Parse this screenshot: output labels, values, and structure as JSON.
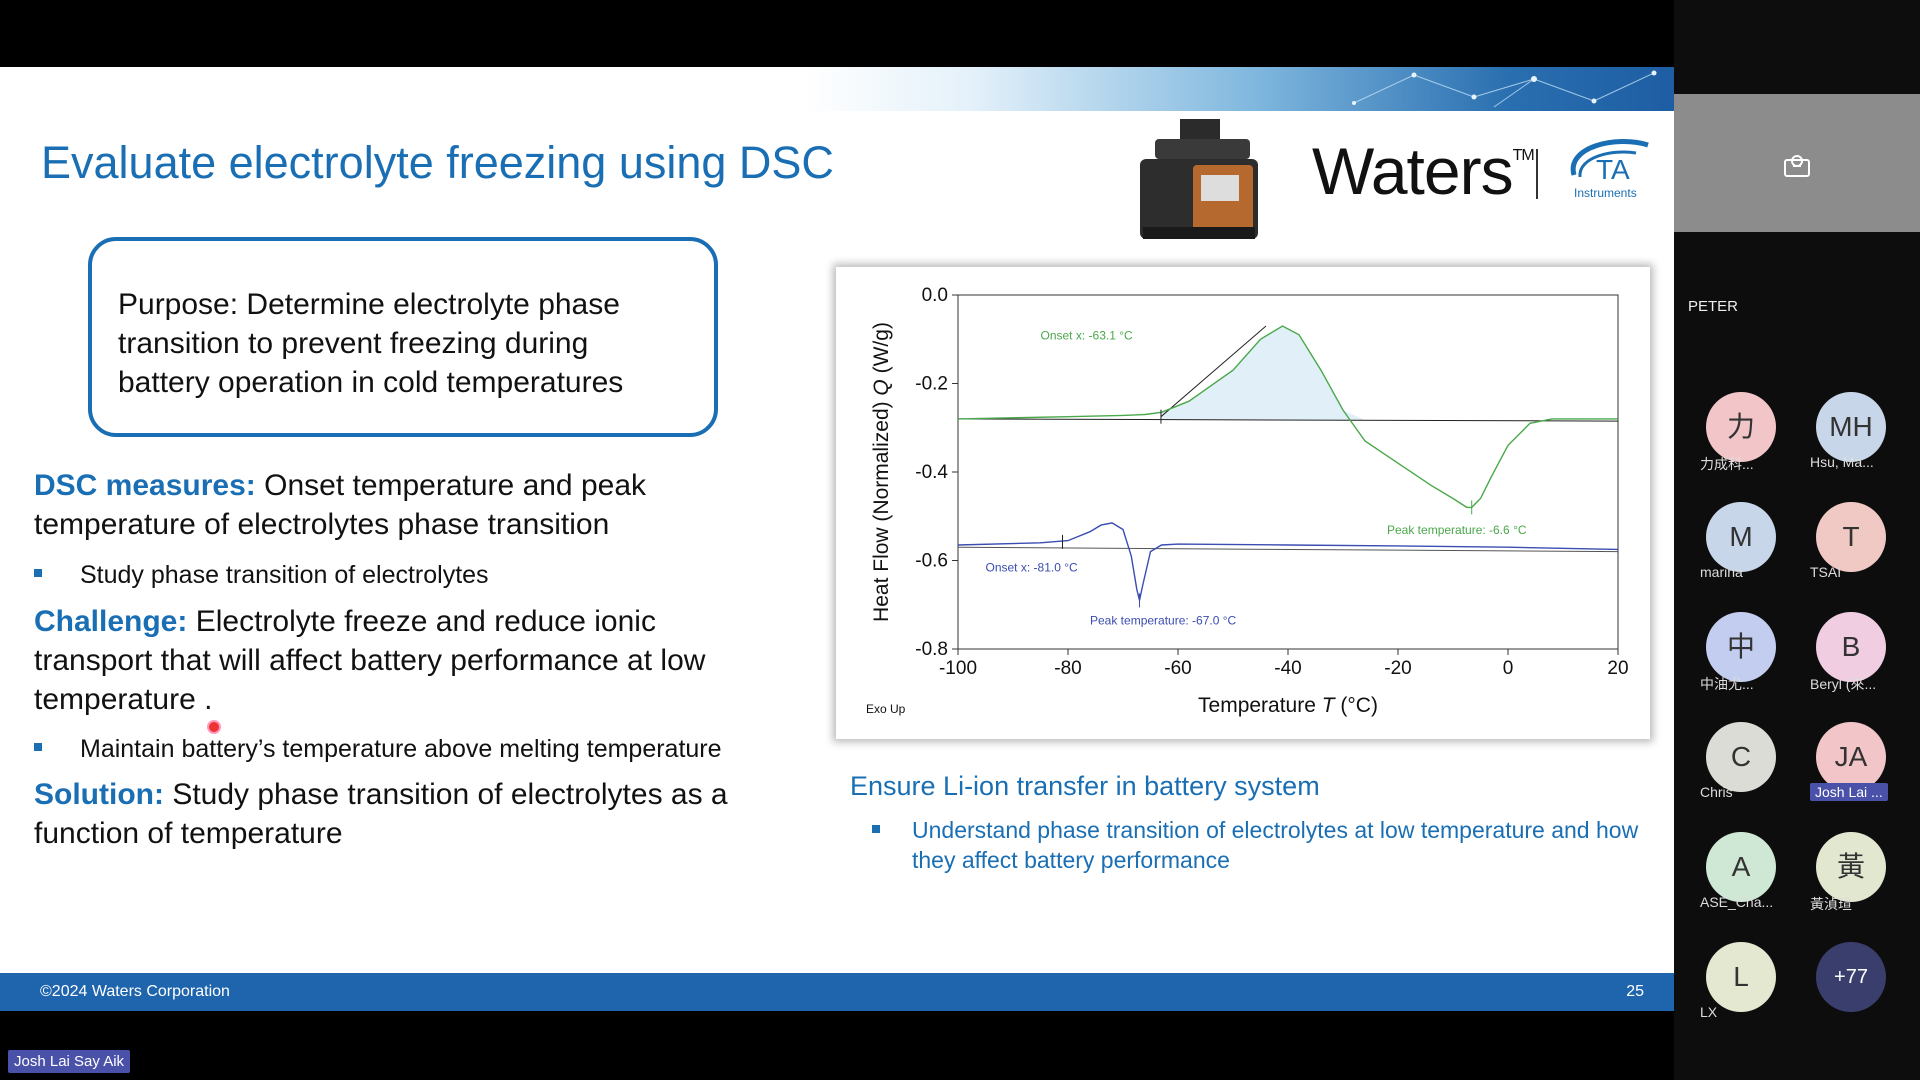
{
  "slide": {
    "title": "Evaluate electrolyte freezing using DSC",
    "logo_waters": "Waters",
    "logo_tm": "TM",
    "logo_ta": "TA",
    "logo_ta_sub": "Instruments",
    "purpose": "Purpose: Determine electrolyte phase transition to prevent freezing during battery operation in cold temperatures",
    "dsc_label": "DSC measures:",
    "dsc_line1": "Onset temperature and peak",
    "dsc_line2": "temperature of electrolytes phase transition",
    "bullet1": "Study phase transition of electrolytes",
    "challenge_label": "Challenge:",
    "challenge_line1": "Electrolyte freeze and reduce ionic",
    "challenge_line2": "transport that will affect battery performance at low",
    "challenge_line3": "temperature .",
    "bullet2": "Maintain battery’s temperature above melting temperature",
    "solution_label": "Solution:",
    "solution_line1": "Study phase transition of electrolytes as a",
    "solution_line2": "function of temperature",
    "ensure_title": "Ensure Li-ion transfer in battery system",
    "ensure_bullet": "Understand phase transition of electrolytes at low temperature and how they affect battery performance",
    "footer_copyright": "©2024 Waters Corporation",
    "page_number": "25"
  },
  "chart_data": {
    "type": "line",
    "xlabel": "Temperature",
    "xlabel_symbol": "T",
    "xlabel_unit": "(°C)",
    "ylabel": "Heat Flow (Normalized)",
    "ylabel_symbol": "Q",
    "ylabel_unit": "(W/g)",
    "xlim": [
      -100,
      20
    ],
    "ylim": [
      -0.8,
      0.0
    ],
    "x_ticks": [
      -100,
      -80,
      -60,
      -40,
      -20,
      0,
      20
    ],
    "y_ticks": [
      0.0,
      -0.2,
      -0.4,
      -0.6,
      -0.8
    ],
    "y_tick_labels": [
      "0.0",
      "-0.2",
      "-0.4",
      "-0.6",
      "-0.8"
    ],
    "corner_note": "Exo Up",
    "series": [
      {
        "color": "#4aa84a",
        "x": [
          -100,
          -80,
          -70,
          -66,
          -63,
          -58,
          -50,
          -45,
          -41,
          -38,
          -34,
          -30,
          -26,
          -20,
          -14,
          -10,
          -7.5,
          -6.6,
          -5,
          -3,
          0,
          4,
          8,
          20
        ],
        "y": [
          -0.28,
          -0.275,
          -0.272,
          -0.27,
          -0.265,
          -0.24,
          -0.17,
          -0.1,
          -0.07,
          -0.09,
          -0.17,
          -0.26,
          -0.33,
          -0.38,
          -0.43,
          -0.46,
          -0.48,
          -0.48,
          -0.46,
          -0.41,
          -0.34,
          -0.29,
          -0.28,
          -0.28
        ]
      },
      {
        "color": "#3a4db0",
        "x": [
          -100,
          -85,
          -80,
          -76,
          -74,
          -72,
          -70,
          -68.5,
          -67.5,
          -67,
          -66.5,
          -65,
          -63,
          -60,
          -40,
          -20,
          0,
          20
        ],
        "y": [
          -0.565,
          -0.56,
          -0.555,
          -0.535,
          -0.52,
          -0.515,
          -0.53,
          -0.59,
          -0.665,
          -0.69,
          -0.66,
          -0.58,
          -0.565,
          -0.563,
          -0.565,
          -0.567,
          -0.57,
          -0.575
        ]
      }
    ],
    "annotations": [
      {
        "text": "Onset x: -63.1 °C",
        "color": "#4aa84a",
        "x": -85,
        "y": -0.1
      },
      {
        "text": "Peak temperature: -6.6 °C",
        "color": "#4aa84a",
        "x": -22,
        "y": -0.54
      },
      {
        "text": "Onset x: -81.0 °C",
        "color": "#3a4db0",
        "x": -95,
        "y": -0.625
      },
      {
        "text": "Peak temperature: -67.0 °C",
        "color": "#3a4db0",
        "x": -76,
        "y": -0.745
      }
    ],
    "baselines": [
      {
        "x1": -100,
        "y1": -0.28,
        "x2": 20,
        "y2": -0.285,
        "color": "#222"
      },
      {
        "x1": -100,
        "y1": -0.57,
        "x2": 20,
        "y2": -0.58,
        "color": "#555"
      }
    ],
    "tangent": {
      "x1": -63.1,
      "y1": -0.275,
      "x2": -44,
      "y2": -0.07
    }
  },
  "participants": {
    "peter": "PETER",
    "list": [
      {
        "initials": "力",
        "name": "力成科...",
        "bg": "#f2c6c8"
      },
      {
        "initials": "MH",
        "name": "Hsu, Ma...",
        "bg": "#c7d6e8"
      },
      {
        "initials": "M",
        "name": "marina",
        "bg": "#c7d6e8"
      },
      {
        "initials": "T",
        "name": "TSAI",
        "bg": "#f0c9c4"
      },
      {
        "initials": "中",
        "name": "中油尤...",
        "bg": "#c3cdef"
      },
      {
        "initials": "B",
        "name": "Beryl (來...",
        "bg": "#f0cde0"
      },
      {
        "initials": "C",
        "name": "Chris",
        "bg": "#dcdcd6"
      },
      {
        "initials": "JA",
        "name": "Josh Lai ...",
        "bg": "#f2c6c8"
      },
      {
        "initials": "A",
        "name": "ASE_Cha...",
        "bg": "#cfe8d6"
      },
      {
        "initials": "黃",
        "name": "黃湞瑄",
        "bg": "#e2e8d0"
      },
      {
        "initials": "L",
        "name": "LX",
        "bg": "#e4e8d0"
      },
      {
        "initials": "+77",
        "name": "",
        "bg": "#3a3e6c"
      }
    ],
    "active_speaker": "Josh Lai Say Aik"
  }
}
